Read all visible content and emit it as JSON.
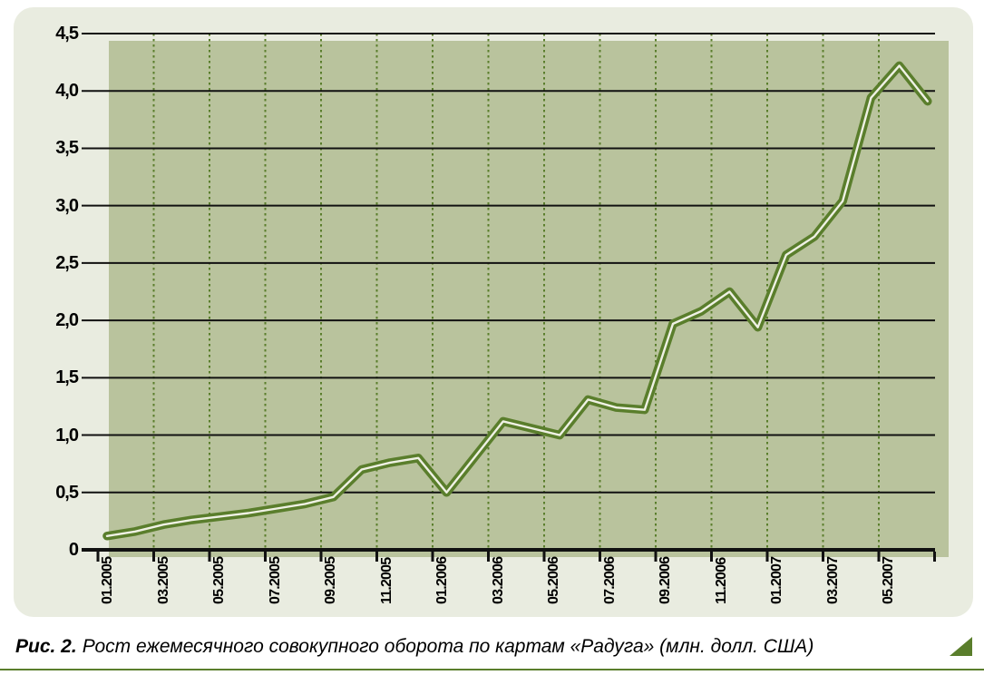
{
  "figure": {
    "caption_prefix": "Рис. 2.",
    "caption_text": "Рост ежемесячного совокупного оборота по картам «Радуга» (млн. долл. США)"
  },
  "colors": {
    "accent_green": "#5a7e2c",
    "panel_bg": "#e9ece0",
    "plot_bg": "#b9c39d",
    "line_inner": "#eff1e4",
    "grid_black": "#111111",
    "text": "#000000"
  },
  "chart_data": {
    "type": "line",
    "title": "Рост ежемесячного совокупного оборота по картам «Радуга» (млн. долл. США)",
    "x": [
      "01.2005",
      "02.2005",
      "03.2005",
      "04.2005",
      "05.2005",
      "06.2005",
      "07.2005",
      "08.2005",
      "09.2005",
      "10.2005",
      "11.2005",
      "12.2005",
      "01.2006",
      "02.2006",
      "03.2006",
      "04.2006",
      "05.2006",
      "06.2006",
      "07.2006",
      "08.2006",
      "09.2006",
      "10.2006",
      "11.2006",
      "12.2006",
      "01.2007",
      "02.2007",
      "03.2007",
      "04.2007",
      "05.2007",
      "06.2007"
    ],
    "values": [
      0.12,
      0.16,
      0.22,
      0.26,
      0.29,
      0.32,
      0.36,
      0.4,
      0.46,
      0.7,
      0.76,
      0.8,
      0.5,
      0.81,
      1.12,
      1.06,
      1.0,
      1.31,
      1.24,
      1.22,
      1.97,
      2.08,
      2.25,
      1.94,
      2.57,
      2.73,
      3.04,
      3.94,
      4.22,
      3.91
    ],
    "x_tick_labels": [
      "01.2005",
      "03.2005",
      "05.2005",
      "07.2005",
      "09.2005",
      "11.2005",
      "01.2006",
      "03.2006",
      "05.2006",
      "07.2006",
      "09.2006",
      "11.2006",
      "01.2007",
      "03.2007",
      "05.2007"
    ],
    "y_ticks": [
      0,
      0.5,
      1,
      1.5,
      2,
      2.5,
      3,
      3.5,
      4,
      4.5
    ],
    "y_tick_labels": [
      "0",
      "0,5",
      "1,0",
      "1,5",
      "2,0",
      "2,5",
      "3,0",
      "3,5",
      "4,0",
      "4,5"
    ],
    "ylim": [
      0,
      4.5
    ],
    "grid": true,
    "legend": false
  }
}
